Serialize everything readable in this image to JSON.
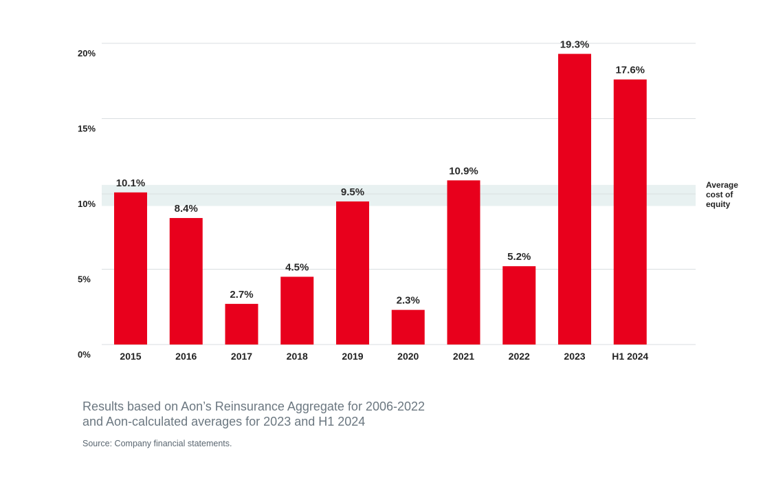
{
  "chart_data": {
    "type": "bar",
    "categories": [
      "2015",
      "2016",
      "2017",
      "2018",
      "2019",
      "2020",
      "2021",
      "2022",
      "2023",
      "H1 2024"
    ],
    "values": [
      10.1,
      8.4,
      2.7,
      4.5,
      9.5,
      2.3,
      10.9,
      5.2,
      19.3,
      17.6
    ],
    "data_labels": [
      "10.1%",
      "8.4%",
      "2.7%",
      "4.5%",
      "9.5%",
      "2.3%",
      "10.9%",
      "5.2%",
      "19.3%",
      "17.6%"
    ],
    "ylim": [
      0,
      20
    ],
    "yticks": [
      0,
      5,
      10,
      15,
      20
    ],
    "ytick_labels": [
      "0%",
      "5%",
      "10%",
      "15%",
      "20%"
    ],
    "grid": true,
    "bar_color": "#e8001c",
    "band": {
      "range": [
        9.2,
        10.6
      ],
      "color": "#e8f1f1",
      "label_lines": [
        "Average",
        "cost of",
        "equity"
      ]
    }
  },
  "caption": {
    "line1": "Results based on Aon’s Reinsurance Aggregate for 2006-2022",
    "line2": "and Aon-calculated averages for 2023 and H1 2024"
  },
  "source": "Source: Company financial statements."
}
